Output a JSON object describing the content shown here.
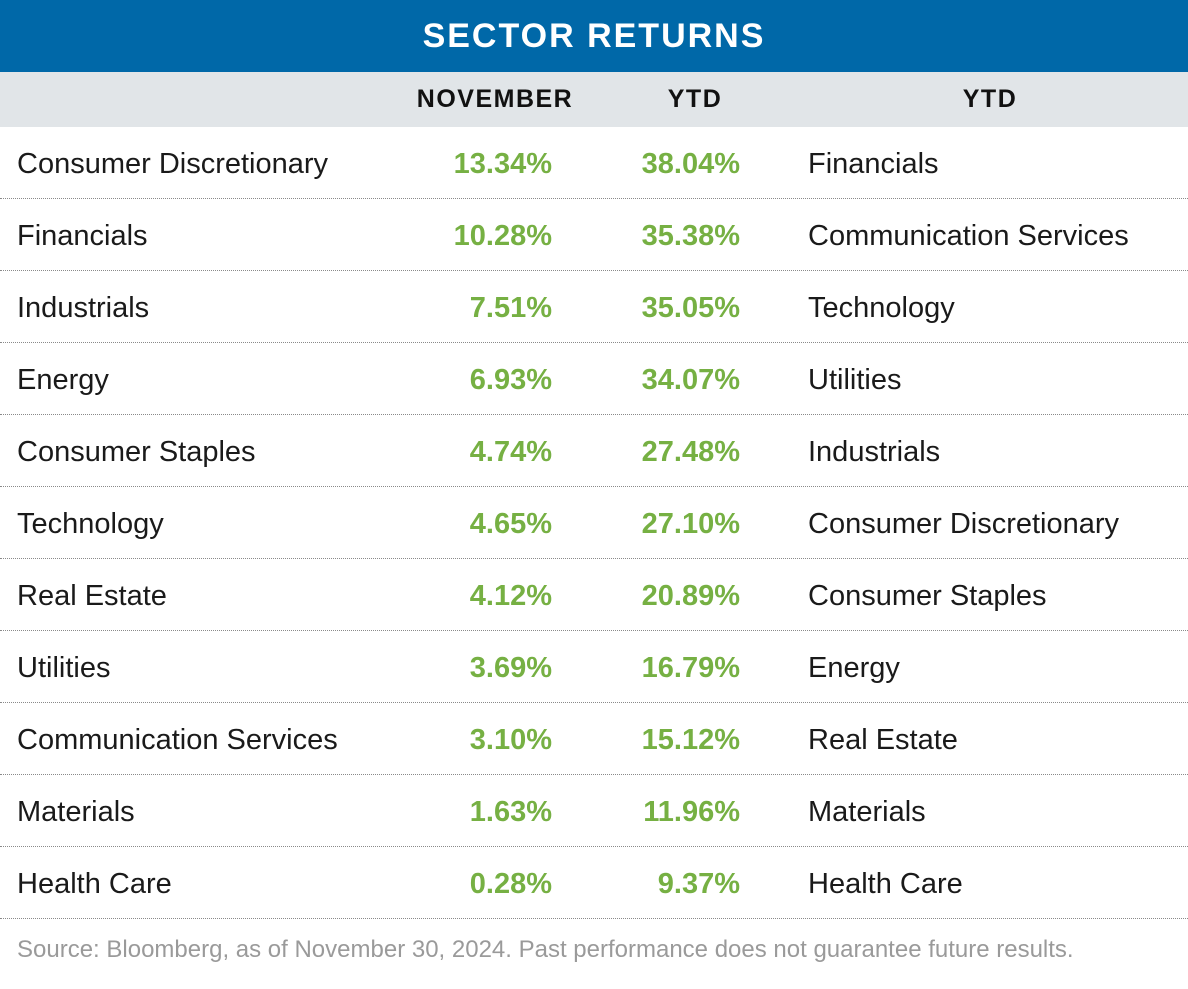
{
  "title": "SECTOR RETURNS",
  "headers": {
    "november": "NOVEMBER",
    "ytd": "YTD",
    "ytd_ranked": "YTD"
  },
  "chart_data": {
    "type": "table",
    "title": "SECTOR RETURNS",
    "columns": [
      "",
      "NOVEMBER",
      "YTD",
      "YTD"
    ],
    "rows": [
      {
        "sector": "Consumer Discretionary",
        "november": "13.34%",
        "ytd": "38.04%",
        "ytd_sector": "Financials"
      },
      {
        "sector": "Financials",
        "november": "10.28%",
        "ytd": "35.38%",
        "ytd_sector": "Communication Services"
      },
      {
        "sector": "Industrials",
        "november": "7.51%",
        "ytd": "35.05%",
        "ytd_sector": "Technology"
      },
      {
        "sector": "Energy",
        "november": "6.93%",
        "ytd": "34.07%",
        "ytd_sector": "Utilities"
      },
      {
        "sector": "Consumer Staples",
        "november": "4.74%",
        "ytd": "27.48%",
        "ytd_sector": "Industrials"
      },
      {
        "sector": "Technology",
        "november": "4.65%",
        "ytd": "27.10%",
        "ytd_sector": "Consumer Discretionary"
      },
      {
        "sector": "Real Estate",
        "november": "4.12%",
        "ytd": "20.89%",
        "ytd_sector": "Consumer Staples"
      },
      {
        "sector": "Utilities",
        "november": "3.69%",
        "ytd": "16.79%",
        "ytd_sector": "Energy"
      },
      {
        "sector": "Communication Services",
        "november": "3.10%",
        "ytd": "15.12%",
        "ytd_sector": "Real Estate"
      },
      {
        "sector": "Materials",
        "november": "1.63%",
        "ytd": "11.96%",
        "ytd_sector": "Materials"
      },
      {
        "sector": "Health Care",
        "november": "0.28%",
        "ytd": "9.37%",
        "ytd_sector": "Health Care"
      }
    ]
  },
  "source": "Source: Bloomberg, as of November 30, 2024. Past performance does not guarantee future results.",
  "colors": {
    "title_bg": "#0068a8",
    "header_bg": "#e1e5e8",
    "value_green": "#76b043",
    "source_gray": "#9a9a9a"
  }
}
